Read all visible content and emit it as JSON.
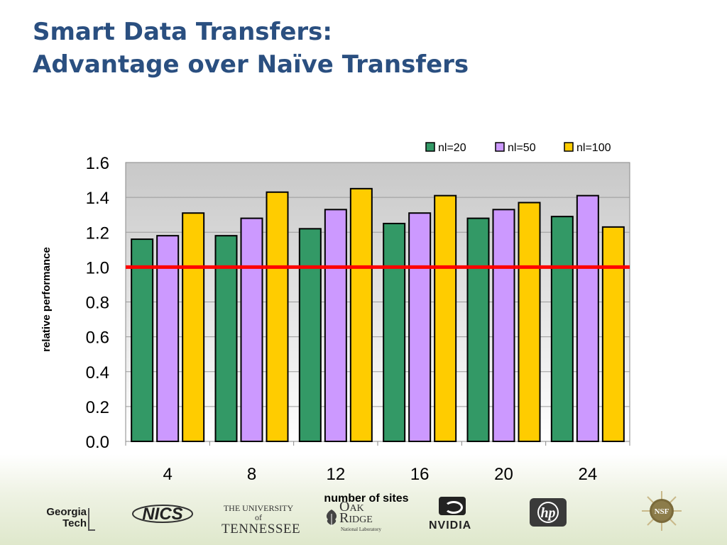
{
  "slide": {
    "title_line1": "Smart Data Transfers:",
    "title_line2": "Advantage over Naïve Transfers"
  },
  "chart_data": {
    "type": "bar",
    "categories": [
      "4",
      "8",
      "12",
      "16",
      "20",
      "24"
    ],
    "series": [
      {
        "name": "nl=20",
        "color": "#339966",
        "values": [
          1.16,
          1.18,
          1.22,
          1.25,
          1.28,
          1.29
        ]
      },
      {
        "name": "nl=50",
        "color": "#cc99ff",
        "values": [
          1.18,
          1.28,
          1.33,
          1.31,
          1.33,
          1.41
        ]
      },
      {
        "name": "nl=100",
        "color": "#ffcc00",
        "values": [
          1.31,
          1.43,
          1.45,
          1.41,
          1.37,
          1.23
        ]
      }
    ],
    "reference_line": {
      "value": 1.0,
      "color": "#ff0000"
    },
    "xlabel": "number of sites",
    "ylabel": "relative performance",
    "ylim": [
      0,
      1.6
    ],
    "yticks": [
      "0.0",
      "0.2",
      "0.4",
      "0.6",
      "0.8",
      "1.0",
      "1.2",
      "1.4",
      "1.6"
    ],
    "grid": true,
    "legend_position": "top-right",
    "plot_background": "gradient grey to white"
  },
  "footer": {
    "logos": {
      "georgia_tech": [
        "Georgia",
        "Tech"
      ],
      "nics": "NICS",
      "tennessee": [
        "THE UNIVERSITY of",
        "TENNESSEE"
      ],
      "oak_ridge": [
        "Oak",
        "Ridge",
        "National Laboratory"
      ],
      "nvidia": "NVIDIA",
      "hp": "hp",
      "nsf": "NSF"
    }
  }
}
